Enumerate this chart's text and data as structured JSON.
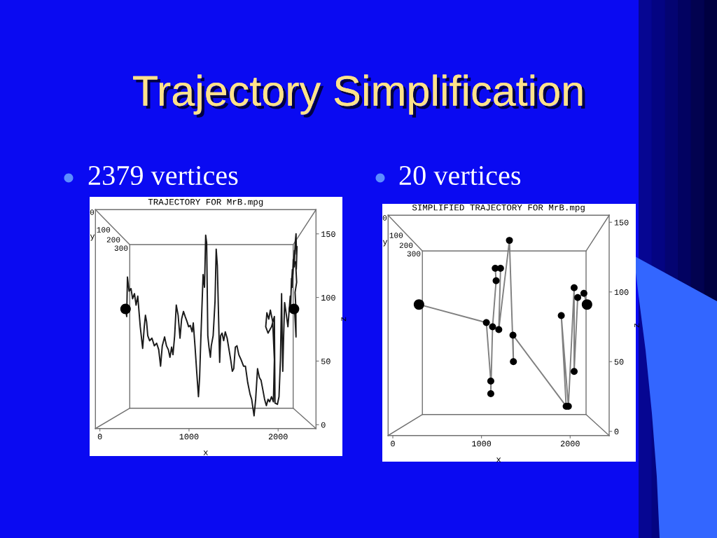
{
  "chart_data": [
    {
      "type": "line",
      "title": "TRAJECTORY FOR MrB.mpg",
      "subtitle": "2379 vertices",
      "annotations": [
        "Trajectory Simplification",
        "y",
        "0",
        "100",
        "200",
        "300"
      ],
      "xlabel": "x",
      "ylabel": "z",
      "xlim": [
        -50,
        2425
      ],
      "ylim": [
        -3,
        169
      ],
      "xticks": [
        0,
        1000,
        2000
      ],
      "yticks": [
        0,
        50,
        100,
        150
      ],
      "marker": "circle",
      "series": [
        {
          "marker": "none",
          "color": "#1a1a1a",
          "x": [
            288,
            301,
            309,
            328,
            349,
            367,
            388,
            406,
            425,
            440,
            453,
            464,
            480,
            498,
            511,
            524,
            537,
            558,
            584,
            611,
            637,
            660,
            681,
            700,
            726,
            747,
            768,
            786,
            805,
            820,
            839,
            857,
            878,
            899,
            917,
            938,
            957,
            978,
            996,
            1014,
            1035,
            1048,
            1067,
            1088,
            1106,
            1119,
            1132,
            1145,
            1158,
            1174,
            1187,
            1198,
            1211,
            1224,
            1240,
            1250,
            1271,
            1292,
            1305,
            1318,
            1344,
            1355,
            1371,
            1389,
            1407,
            1428,
            1449,
            1468,
            1486,
            1502,
            1520,
            1538,
            1559,
            1585,
            1612,
            1633,
            1659,
            1685,
            1703,
            1730,
            1748,
            1769,
            1790,
            1808,
            1827,
            1848,
            1868,
            1887,
            1905,
            1926,
            1947,
            1958,
            1939,
            1913,
            1895,
            1874,
            1861,
            1887,
            1926,
            1958,
            1965,
            1992,
            2010,
            2026,
            2039,
            2047,
            2052,
            2062,
            2073,
            2089,
            2110,
            2136,
            2141,
            2150,
            2145,
            2160,
            2157,
            2170,
            2165,
            2183,
            2180,
            2193,
            2201,
            2206,
            2212,
            2204,
            2196,
            2208,
            2190,
            2199,
            2201,
            2183
          ],
          "values": [
            91,
            85,
            116,
            105,
            107,
            99,
            103,
            94,
            101,
            88,
            77,
            70,
            60,
            77,
            86,
            81,
            70,
            66,
            68,
            62,
            64,
            59,
            46,
            62,
            69,
            62,
            59,
            53,
            61,
            55,
            70,
            94,
            86,
            68,
            83,
            89,
            85,
            81,
            77,
            78,
            73,
            80,
            62,
            40,
            22,
            37,
            66,
            92,
            118,
            108,
            149,
            143,
            70,
            61,
            53,
            62,
            70,
            97,
            138,
            125,
            49,
            70,
            72,
            66,
            73,
            68,
            59,
            51,
            42,
            44,
            61,
            62,
            55,
            51,
            46,
            46,
            33,
            24,
            20,
            7,
            20,
            44,
            37,
            35,
            28,
            20,
            15,
            20,
            18,
            22,
            18,
            51,
            81,
            90,
            83,
            88,
            77,
            72,
            77,
            85,
            17,
            16,
            22,
            51,
            103,
            61,
            42,
            70,
            96,
            88,
            77,
            101,
            94,
            115,
            104,
            122,
            108,
            130,
            118,
            137,
            124,
            144,
            150,
            134,
            140,
            122,
            128,
            112,
            104,
            92,
            69,
            92
          ]
        },
        {
          "type": "scatter",
          "color": "#000000",
          "x": [
            288,
            2178
          ],
          "values": [
            91,
            91
          ]
        }
      ]
    },
    {
      "type": "line",
      "title": "SIMPLIFIED TRAJECTORY FOR MrB.mpg",
      "subtitle": "20 vertices",
      "annotations": [
        "y",
        "0",
        "100",
        "200",
        "300"
      ],
      "xlabel": "x",
      "ylabel": "z",
      "xlim": [
        -53,
        2440
      ],
      "ylim": [
        -3,
        155
      ],
      "xticks": [
        0,
        1000,
        2000
      ],
      "yticks": [
        0,
        50,
        100,
        150
      ],
      "marker": "circle",
      "series": [
        {
          "marker": "none",
          "color": "#808080",
          "x": [
            295,
            1055,
            1105,
            1105,
            1125,
            1165,
            1155,
            1215,
            1195,
            1315,
            1360,
            1355,
            1955,
            1900,
            1980,
            2045,
            2045,
            2085,
            2155,
            2190
          ],
          "values": [
            91,
            78,
            36,
            27,
            75,
            108,
            117,
            117,
            73,
            137,
            50,
            69,
            18,
            83,
            18,
            103,
            43,
            96,
            99,
            91
          ]
        },
        {
          "type": "bubble",
          "color": "#000000",
          "x": [
            295,
            1055,
            1105,
            1105,
            1125,
            1165,
            1155,
            1215,
            1195,
            1315,
            1360,
            1355,
            1955,
            1900,
            1980,
            2045,
            2045,
            2085,
            2155,
            2190
          ],
          "values": [
            91,
            78,
            36,
            27,
            75,
            108,
            117,
            117,
            73,
            137,
            50,
            69,
            18,
            83,
            18,
            103,
            43,
            96,
            99,
            91
          ],
          "sizes": [
            1,
            0.44,
            0.44,
            0.44,
            0.44,
            0.44,
            0.44,
            0.44,
            0.44,
            0.44,
            0.44,
            0.44,
            0.44,
            0.44,
            0.44,
            0.44,
            0.44,
            0.44,
            0.44,
            1
          ]
        }
      ]
    }
  ]
}
